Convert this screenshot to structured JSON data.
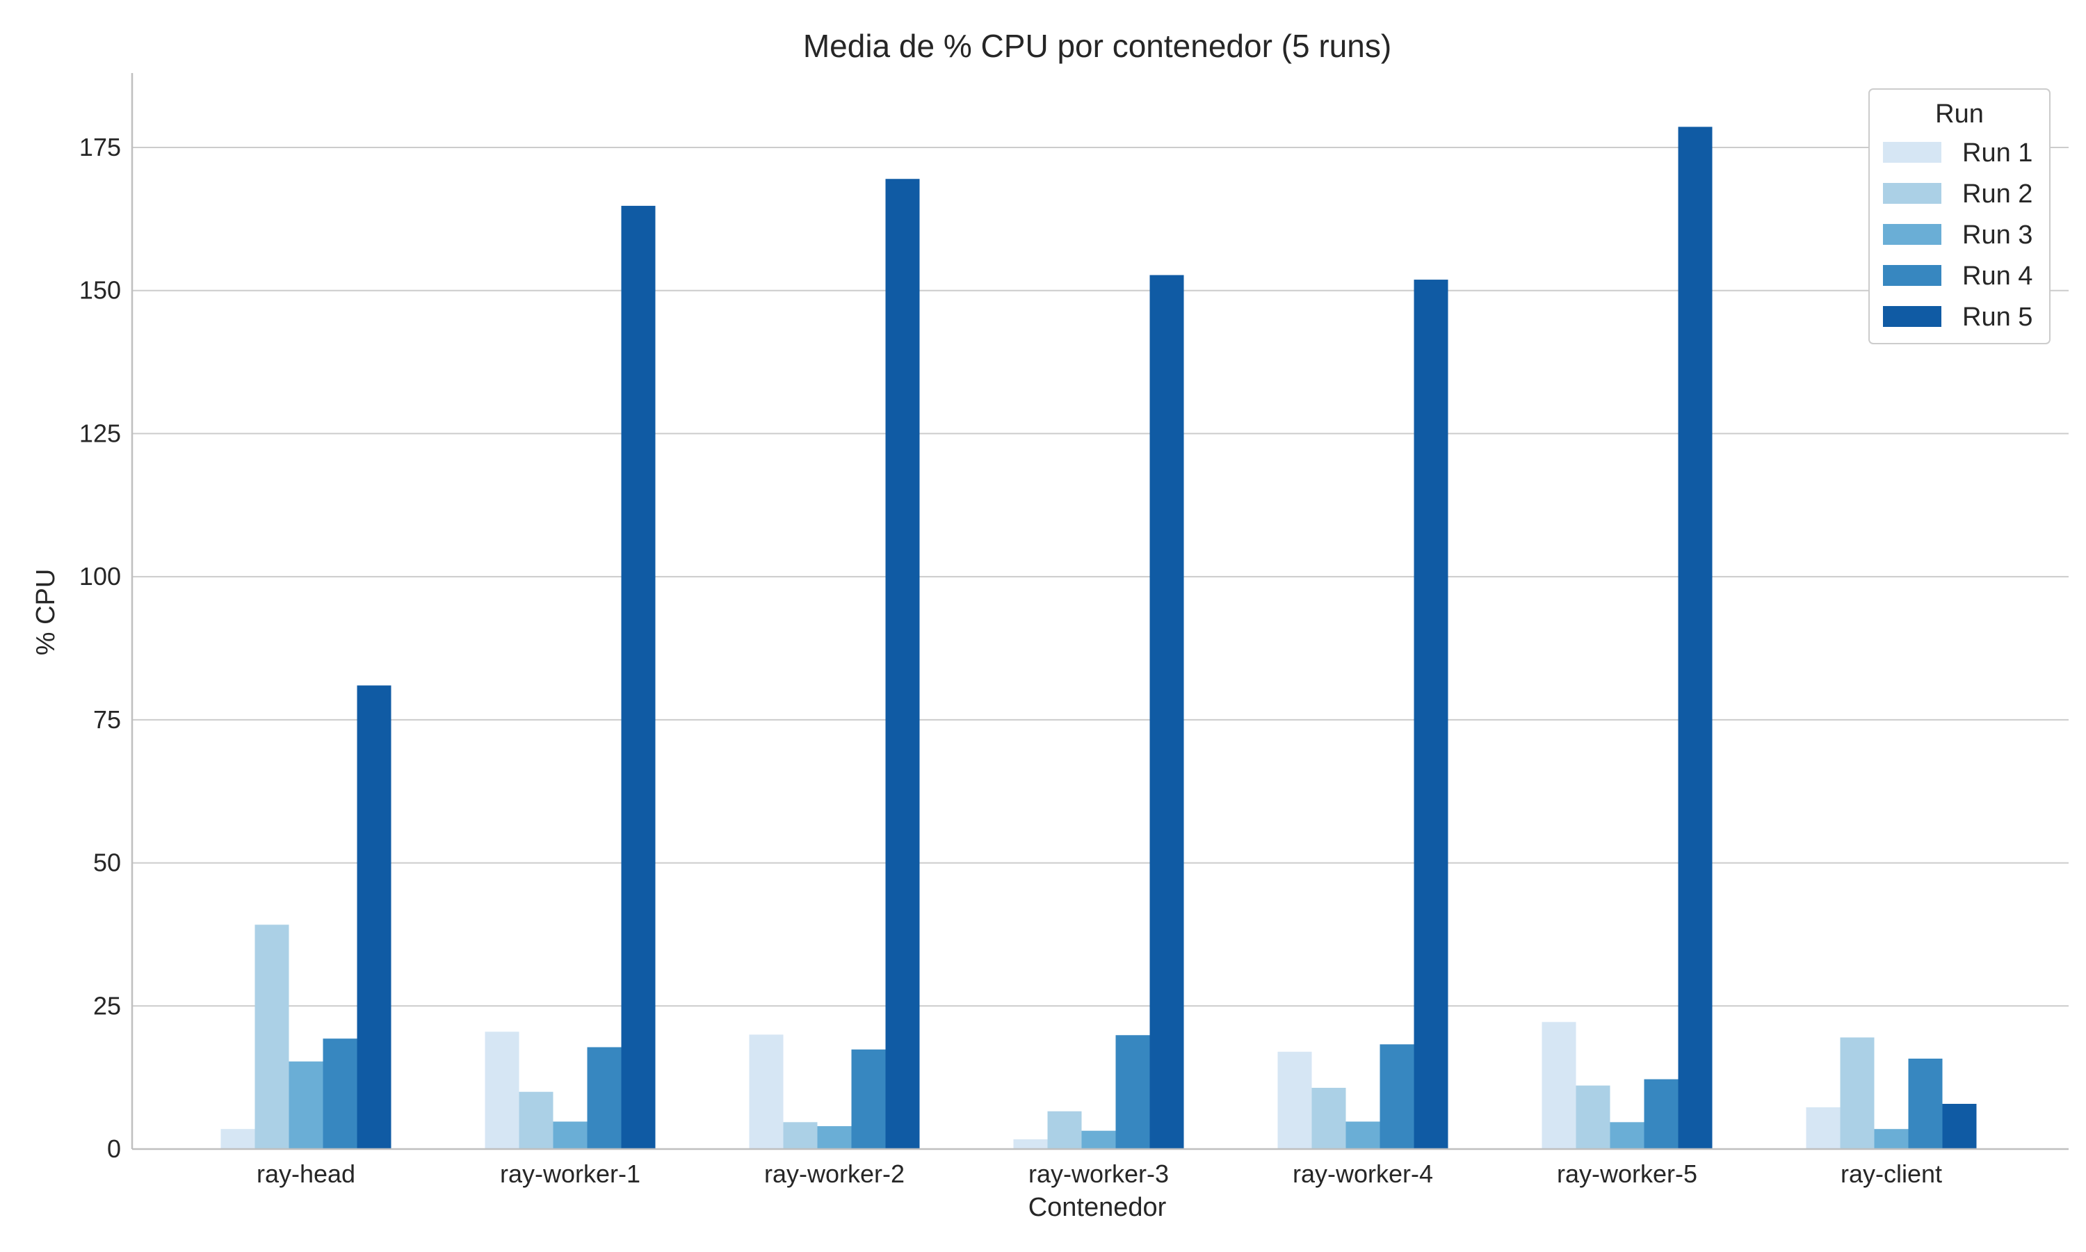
{
  "chart_data": {
    "type": "bar",
    "title": "Media de % CPU por contenedor (5 runs)",
    "xlabel": "Contenedor",
    "ylabel": "% CPU",
    "ylim": [
      0,
      188
    ],
    "yticks": [
      0,
      25,
      50,
      75,
      100,
      125,
      150,
      175
    ],
    "grid": "horizontal",
    "legend_title": "Run",
    "legend_position": "top-right",
    "categories": [
      "ray-head",
      "ray-worker-1",
      "ray-worker-2",
      "ray-worker-3",
      "ray-worker-4",
      "ray-worker-5",
      "ray-client"
    ],
    "series": [
      {
        "name": "Run 1",
        "color": "#d6e6f4",
        "values": [
          3.5,
          20.5,
          20.0,
          1.7,
          17.0,
          22.2,
          7.3
        ]
      },
      {
        "name": "Run 2",
        "color": "#abd0e6",
        "values": [
          39.2,
          10.0,
          4.7,
          6.6,
          10.7,
          11.1,
          19.5
        ]
      },
      {
        "name": "Run 3",
        "color": "#6aaed6",
        "values": [
          15.3,
          4.8,
          4.0,
          3.2,
          4.8,
          4.7,
          3.5
        ]
      },
      {
        "name": "Run 4",
        "color": "#3787c0",
        "values": [
          19.3,
          17.8,
          17.4,
          19.9,
          18.3,
          12.2,
          15.8
        ]
      },
      {
        "name": "Run 5",
        "color": "#105ba4",
        "values": [
          81.0,
          164.8,
          169.5,
          152.7,
          151.9,
          178.6,
          7.9
        ]
      }
    ]
  }
}
